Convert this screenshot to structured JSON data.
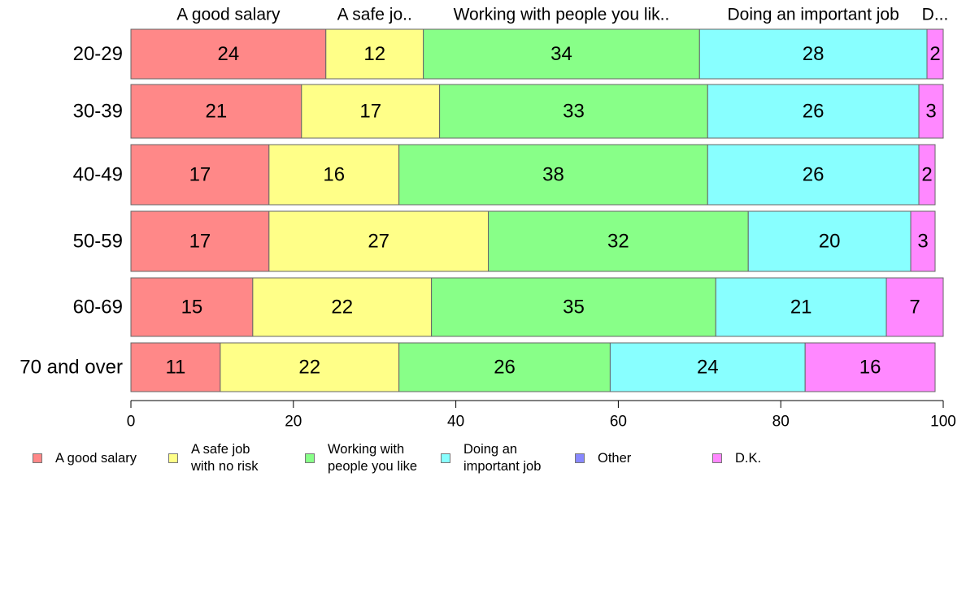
{
  "chart_data": {
    "type": "bar",
    "orientation": "horizontal",
    "stacked": true,
    "categories": [
      "20-29",
      "30-39",
      "40-49",
      "50-59",
      "60-69",
      "70 and over"
    ],
    "series": [
      {
        "name": "A good salary",
        "top_label": "A good salary",
        "color": "#ff8888",
        "values": [
          24,
          21,
          17,
          17,
          15,
          11
        ]
      },
      {
        "name": "A safe job\nwith no risk",
        "top_label": "A safe jo..",
        "color": "#ffff88",
        "values": [
          12,
          17,
          16,
          27,
          22,
          22
        ]
      },
      {
        "name": "Working with\npeople you like",
        "top_label": "Working with people you lik..",
        "color": "#88ff88",
        "values": [
          34,
          33,
          38,
          32,
          35,
          26
        ]
      },
      {
        "name": "Doing an\nimportant job",
        "top_label": "Doing an important job",
        "color": "#88ffff",
        "values": [
          28,
          26,
          26,
          20,
          21,
          24
        ]
      },
      {
        "name": "Other",
        "top_label": "",
        "color": "#8888ff",
        "values": [
          0,
          0,
          0,
          0,
          0,
          0
        ]
      },
      {
        "name": "D.K.",
        "top_label": "D...",
        "color": "#ff88ff",
        "values": [
          2,
          3,
          2,
          3,
          7,
          16
        ]
      }
    ],
    "xlim": [
      0,
      100
    ],
    "xticks": [
      0,
      20,
      40,
      60,
      80,
      100
    ],
    "title": "",
    "xlabel": "",
    "ylabel": "",
    "grid": false,
    "legend_position": "bottom"
  }
}
